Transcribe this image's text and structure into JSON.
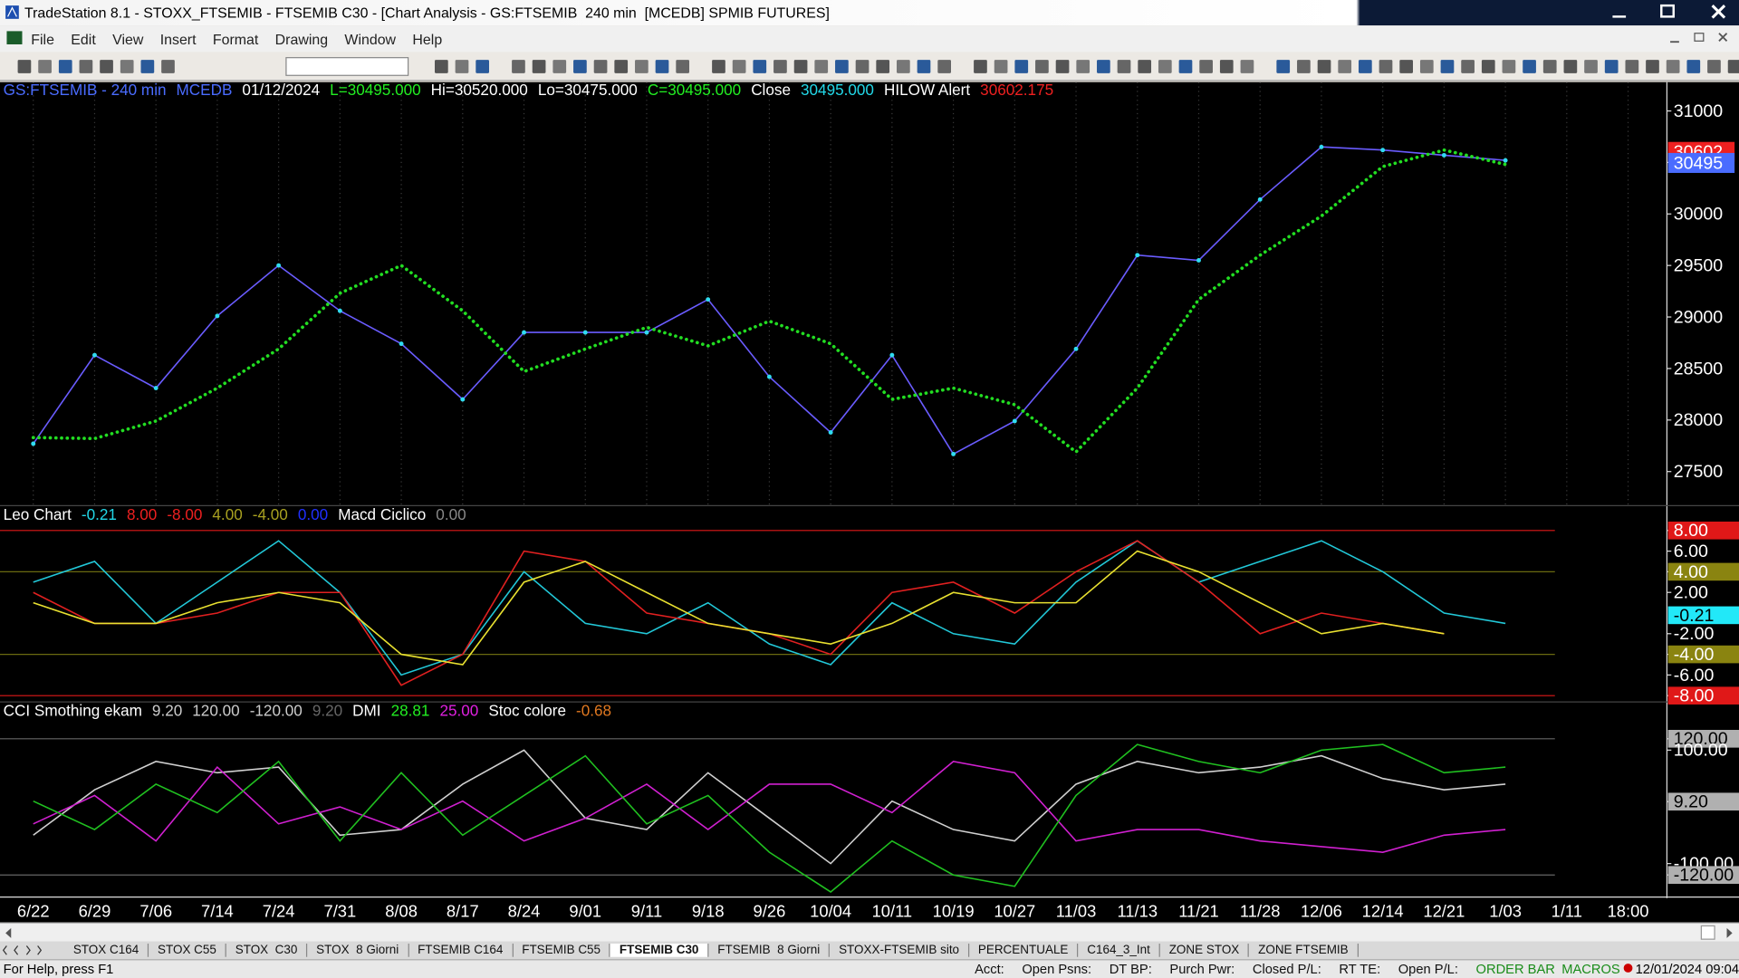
{
  "window": {
    "title": "TradeStation 8.1 - STOXX_FTSEMIB - FTSEMIB C30 - [Chart Analysis - GS:FTSEMIB  240 min  [MCEDB] SPMIB FUTURES]",
    "menu": [
      "File",
      "Edit",
      "View",
      "Insert",
      "Format",
      "Drawing",
      "Window",
      "Help"
    ],
    "tabs": [
      "STOX C164",
      "STOX C55",
      "STOX  C30",
      "STOX  8 Giorni",
      "FTSEMIB C164",
      "FTSEMIB C55",
      "FTSEMIB C30",
      "FTSEMIB  8 Giorni",
      "STOXX-FTSEMIB sito",
      "PERCENTUALE",
      "C164_3_Int",
      "ZONE STOX",
      "ZONE FTSEMIB"
    ],
    "active_tab": 6,
    "status_left": "For Help, press F1",
    "status_fields": [
      "Acct:",
      "Open Psns:",
      "DT BP:",
      "Purch Pwr:",
      "Closed P/L:",
      "RT TE:",
      "Open P/L:"
    ],
    "status_order": "ORDER BAR",
    "status_macros": "MACROS",
    "status_time": "12/01/2024 09:04"
  },
  "chart_data": [
    {
      "type": "line",
      "categories": [
        "6/22",
        "6/29",
        "7/06",
        "7/14",
        "7/24",
        "7/31",
        "8/08",
        "8/17",
        "8/24",
        "9/01",
        "9/11",
        "9/18",
        "9/26",
        "10/04",
        "10/11",
        "10/19",
        "10/27",
        "11/03",
        "11/13",
        "11/21",
        "11/28",
        "12/06",
        "12/14",
        "12/21",
        "1/03",
        "1/11",
        "18:00"
      ],
      "legend": [
        {
          "text": "GS:FTSEMIB - 240 min",
          "color": "#4a6cff"
        },
        {
          "text": "MCEDB",
          "color": "#4a6cff"
        },
        {
          "text": "01/12/2024",
          "color": "#ffffff"
        },
        {
          "text": "L=30495.000",
          "color": "#22ee22"
        },
        {
          "text": "Hi=30520.000",
          "color": "#ffffff"
        },
        {
          "text": "Lo=30475.000",
          "color": "#ffffff"
        },
        {
          "text": "C=30495.000",
          "color": "#22ee22"
        },
        {
          "text": "Close",
          "color": "#ffffff"
        },
        {
          "text": "30495.000",
          "color": "#22d8e8"
        },
        {
          "text": "HILOW Alert",
          "color": "#ffffff"
        },
        {
          "text": "30602.175",
          "color": "#ee2020"
        }
      ],
      "series": [
        {
          "name": "Close",
          "color": "#6a5cff",
          "marker_color": "#30dcf0",
          "style": "line",
          "values": [
            27770,
            28630,
            28310,
            29010,
            29500,
            29060,
            28740,
            28200,
            28850,
            28850,
            28850,
            29170,
            28420,
            27880,
            28630,
            27670,
            27990,
            28690,
            29600,
            29550,
            30140,
            30650,
            30620,
            30570,
            30520,
            null,
            null
          ]
        },
        {
          "name": "HILOW Alert",
          "color": "#22dd22",
          "style": "dots",
          "values": [
            27830,
            27820,
            27990,
            28310,
            28690,
            29230,
            29500,
            29060,
            28470,
            28690,
            28900,
            28720,
            28960,
            28740,
            28200,
            28310,
            28150,
            27690,
            28310,
            29170,
            29600,
            29980,
            30460,
            30620,
            30480,
            null,
            null
          ]
        }
      ],
      "markers": [
        {
          "value": 30602.175,
          "label": "30602",
          "color": "#ee2020"
        },
        {
          "value": 30495,
          "label": "30495",
          "color": "#4a6cff"
        }
      ],
      "ylim": [
        27180,
        31280
      ],
      "yticks": [
        27500,
        28000,
        28500,
        29000,
        29500,
        30000,
        30500,
        31000
      ],
      "tick_hidden": [
        30500
      ],
      "grid": true
    },
    {
      "type": "line",
      "legend": [
        {
          "text": "Leo Chart",
          "color": "#ffffff"
        },
        {
          "text": "-0.21",
          "color": "#22d8e8"
        },
        {
          "text": "8.00",
          "color": "#ee2020"
        },
        {
          "text": "-8.00",
          "color": "#ee2020"
        },
        {
          "text": "4.00",
          "color": "#a8a020"
        },
        {
          "text": "-4.00",
          "color": "#a8a020"
        },
        {
          "text": "0.00",
          "color": "#2030ff"
        },
        {
          "text": "Macd Ciclico",
          "color": "#ffffff"
        },
        {
          "text": "0.00",
          "color": "#888888"
        }
      ],
      "series": [
        {
          "name": "Leo Chart",
          "color": "#22c8d8",
          "style": "line",
          "values": [
            3,
            5,
            -1,
            3,
            7,
            2,
            -6,
            -4,
            4,
            -1,
            -2,
            1,
            -3,
            -5,
            1,
            -2,
            -3,
            3,
            7,
            3,
            5,
            7,
            4,
            0,
            -1,
            null,
            null
          ]
        },
        {
          "name": "Macd Ciclico",
          "color": "#e02020",
          "style": "line",
          "values": [
            2,
            -1,
            -1,
            0,
            2,
            2,
            -7,
            -4,
            6,
            5,
            0,
            -1,
            -2,
            -4,
            2,
            3,
            0,
            4,
            7,
            3,
            -2,
            0,
            -1,
            -2,
            null,
            null,
            null
          ]
        },
        {
          "name": "Signal",
          "color": "#e8e030",
          "style": "line",
          "values": [
            1,
            -1,
            -1,
            1,
            2,
            1,
            -4,
            -5,
            3,
            5,
            2,
            -1,
            -2,
            -3,
            -1,
            2,
            1,
            1,
            6,
            4,
            1,
            -2,
            -1,
            -2,
            null,
            null,
            null
          ]
        }
      ],
      "marker_bind": 1,
      "marker_value": -0.21,
      "marker_color": "#22e8f8",
      "ylim": [
        -8.5,
        10.3
      ],
      "yticks": [
        {
          "value": 8,
          "label": "8.00",
          "color": "#e01818",
          "line": "#e01818"
        },
        {
          "value": 6,
          "label": "6.00"
        },
        {
          "value": 4,
          "label": "4.00",
          "color": "#8a8410",
          "line": "#6a6a10"
        },
        {
          "value": 2,
          "label": "2.00"
        },
        {
          "value": -2,
          "label": "-2.00"
        },
        {
          "value": -4,
          "label": "-4.00",
          "color": "#8a8410",
          "line": "#6a6a10"
        },
        {
          "value": -6,
          "label": "-6.00"
        },
        {
          "value": -8,
          "label": "-8.00",
          "color": "#e01818",
          "line": "#e01818"
        }
      ]
    },
    {
      "type": "line",
      "legend": [
        {
          "text": "CCI Smothing ekam",
          "color": "#ffffff"
        },
        {
          "text": "9.20",
          "color": "#cccccc"
        },
        {
          "text": "120.00",
          "color": "#cccccc"
        },
        {
          "text": "-120.00",
          "color": "#cccccc"
        },
        {
          "text": "9.20",
          "color": "#666666"
        },
        {
          "text": "DMI",
          "color": "#ffffff"
        },
        {
          "text": "28.81",
          "color": "#22ee22"
        },
        {
          "text": "25.00",
          "color": "#e020e0"
        },
        {
          "text": "Stoc colore",
          "color": "#ffffff"
        },
        {
          "text": "-0.68",
          "color": "#e07820"
        }
      ],
      "series": [
        {
          "name": "CCI Smothing ekam",
          "color": "#d0d0d0",
          "style": "line",
          "values": [
            -50,
            30,
            80,
            60,
            70,
            -50,
            -40,
            40,
            100,
            -20,
            -40,
            60,
            -20,
            -100,
            10,
            -40,
            -60,
            40,
            80,
            60,
            70,
            90,
            50,
            30,
            40,
            null,
            null
          ]
        },
        {
          "name": "DMI",
          "color": "#d020d0",
          "style": "line",
          "values": [
            -30,
            20,
            -60,
            70,
            -30,
            0,
            -40,
            10,
            -60,
            -20,
            40,
            -40,
            40,
            40,
            -10,
            80,
            60,
            -60,
            -40,
            -40,
            -60,
            -70,
            -80,
            -50,
            -40,
            null,
            null
          ]
        },
        {
          "name": "Stoc colore",
          "color": "#20c020",
          "style": "line",
          "values": [
            10,
            -40,
            40,
            -10,
            80,
            -60,
            60,
            -50,
            20,
            90,
            -30,
            20,
            -80,
            -150,
            -60,
            -120,
            -140,
            20,
            110,
            80,
            60,
            100,
            110,
            60,
            70,
            null,
            null
          ]
        }
      ],
      "ylim": [
        -157,
        183
      ],
      "yticks": [
        {
          "value": 120,
          "label": "120.00",
          "color": "#b0b0b0",
          "line": "#666666"
        },
        {
          "value": 100,
          "label": "100.00"
        },
        {
          "value": 9.2,
          "label": "9.20",
          "color": "#b0b0b0"
        },
        {
          "value": -100,
          "label": "-100.00"
        },
        {
          "value": -120,
          "label": "-120.00",
          "color": "#b0b0b0",
          "line": "#666666"
        }
      ]
    }
  ]
}
